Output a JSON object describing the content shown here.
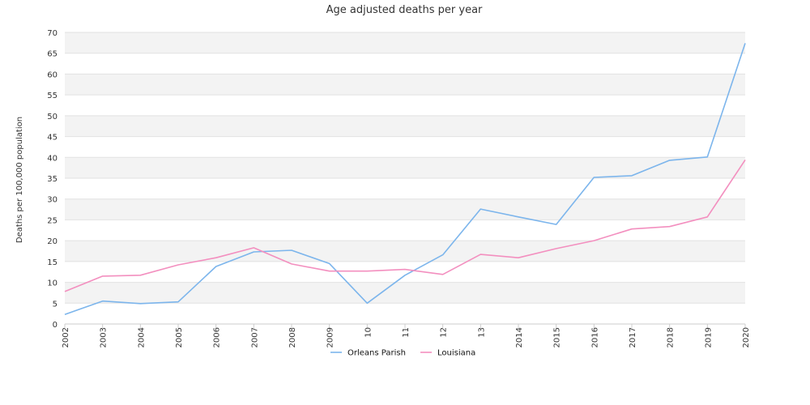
{
  "chart_data": {
    "type": "line",
    "title": "Age adjusted deaths per year",
    "xlabel": "",
    "ylabel": "Deaths per 100,000 population",
    "ylim": [
      0,
      70
    ],
    "yticks": [
      0,
      5,
      10,
      15,
      20,
      25,
      30,
      35,
      40,
      45,
      50,
      55,
      60,
      65,
      70
    ],
    "categories": [
      "2002",
      "2003",
      "2004",
      "2005",
      "2006",
      "2007",
      "2008",
      "2009",
      "10",
      "11",
      "12",
      "13",
      "2014",
      "2015",
      "2016",
      "2017",
      "2018",
      "2019",
      "2020"
    ],
    "grid": "horizontal-bands",
    "legend_position": "bottom",
    "series": [
      {
        "name": "Orleans Parish",
        "color": "#7cb5ec",
        "values": [
          2.3,
          5.5,
          4.9,
          5.3,
          13.8,
          17.3,
          17.7,
          14.5,
          5.0,
          11.7,
          16.6,
          27.6,
          25.7,
          23.9,
          35.2,
          35.6,
          39.3,
          40.1,
          67.4
        ]
      },
      {
        "name": "Louisiana",
        "color": "#f38fbf",
        "values": [
          7.8,
          11.5,
          11.7,
          14.2,
          15.9,
          18.3,
          14.4,
          12.7,
          12.7,
          13.1,
          11.9,
          16.7,
          15.9,
          18.1,
          20.0,
          22.8,
          23.4,
          25.7,
          39.4
        ]
      }
    ]
  }
}
